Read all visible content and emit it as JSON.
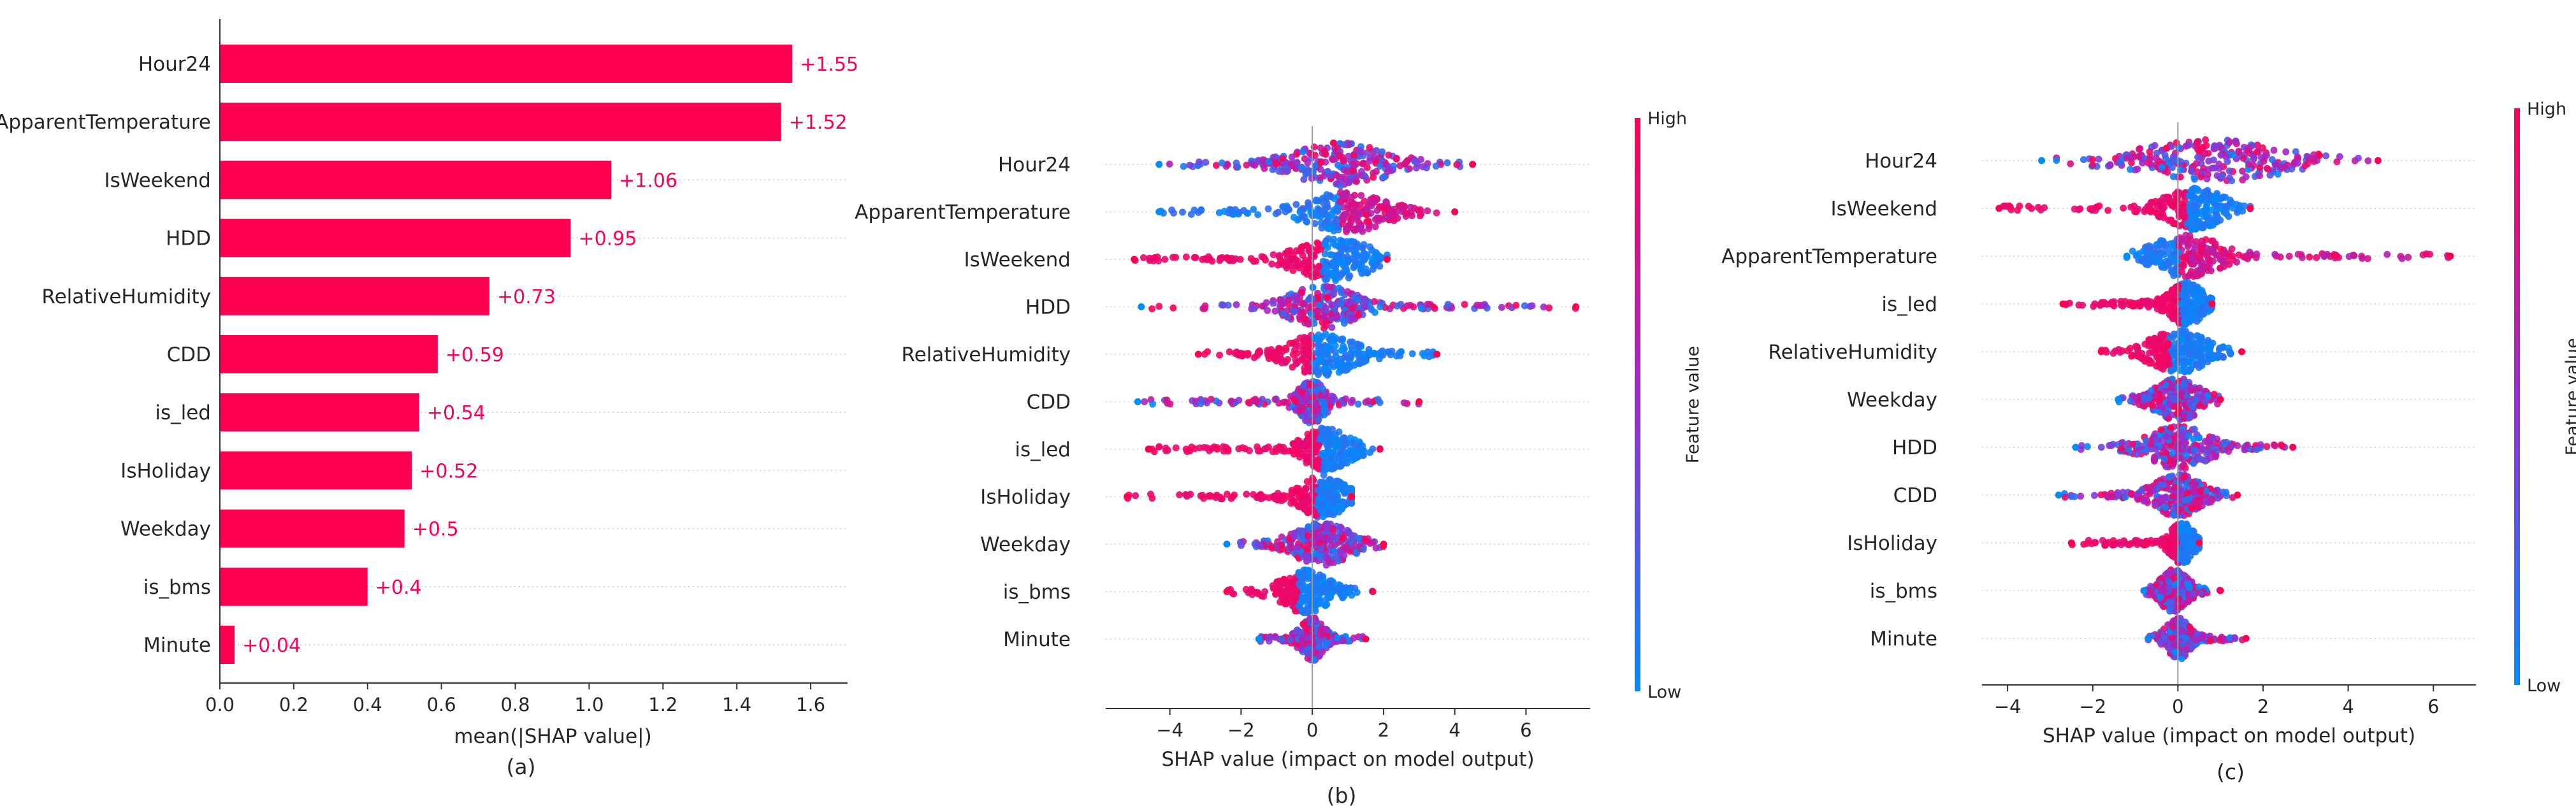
{
  "chart_data": [
    {
      "type": "bar",
      "panel_label": "(a)",
      "categories": [
        "Hour24",
        "ApparentTemperature",
        "IsWeekend",
        "HDD",
        "RelativeHumidity",
        "CDD",
        "is_led",
        "IsHoliday",
        "Weekday",
        "is_bms",
        "Minute"
      ],
      "values": [
        1.55,
        1.52,
        1.06,
        0.95,
        0.73,
        0.59,
        0.54,
        0.52,
        0.5,
        0.4,
        0.04
      ],
      "value_labels": [
        "+1.55",
        "+1.52",
        "+1.06",
        "+0.95",
        "+0.73",
        "+0.59",
        "+0.54",
        "+0.52",
        "+0.5",
        "+0.4",
        "+0.04"
      ],
      "xlabel": "mean(|SHAP value|)",
      "xlim": [
        0,
        1.7
      ],
      "xticks": [
        0.0,
        0.2,
        0.4,
        0.6,
        0.8,
        1.0,
        1.2,
        1.4,
        1.6
      ],
      "xtick_labels": [
        "0.0",
        "0.2",
        "0.4",
        "0.6",
        "0.8",
        "1.0",
        "1.2",
        "1.4",
        "1.6"
      ],
      "bar_color": "#ff0051",
      "grid": false
    },
    {
      "type": "scatter",
      "subtype": "beeswarm",
      "panel_label": "(b)",
      "features": [
        {
          "name": "Hour24",
          "min": -4.3,
          "max": 4.5,
          "center": 0.8,
          "spread": 1.0,
          "high_side": "mixed"
        },
        {
          "name": "ApparentTemperature",
          "min": -4.3,
          "max": 4.0,
          "center": 1.0,
          "spread": 0.8,
          "high_side": "positive"
        },
        {
          "name": "IsWeekend",
          "min": -5.0,
          "max": 2.1,
          "center": 0.6,
          "spread": 0.8,
          "high_side": "negative"
        },
        {
          "name": "HDD",
          "min": -4.8,
          "max": 7.4,
          "center": 0.3,
          "spread": 0.7,
          "high_side": "mixed"
        },
        {
          "name": "RelativeHumidity",
          "min": -3.2,
          "max": 3.5,
          "center": 0.3,
          "spread": 0.7,
          "high_side": "negative"
        },
        {
          "name": "CDD",
          "min": -4.9,
          "max": 3.0,
          "center": 0.0,
          "spread": 0.3,
          "high_side": "mixed"
        },
        {
          "name": "is_led",
          "min": -4.6,
          "max": 1.9,
          "center": 0.4,
          "spread": 0.5,
          "high_side": "negative"
        },
        {
          "name": "IsHoliday",
          "min": -5.2,
          "max": 1.1,
          "center": 0.3,
          "spread": 0.45,
          "high_side": "negative"
        },
        {
          "name": "Weekday",
          "min": -2.4,
          "max": 2.0,
          "center": 0.3,
          "spread": 0.6,
          "high_side": "mixed"
        },
        {
          "name": "is_bms",
          "min": -2.4,
          "max": 1.7,
          "center": -0.2,
          "spread": 0.5,
          "high_side": "negative"
        },
        {
          "name": "Minute",
          "min": -1.5,
          "max": 1.5,
          "center": 0.0,
          "spread": 0.25,
          "high_side": "mixed"
        }
      ],
      "xlabel": "SHAP value (impact on model output)",
      "xlim": [
        -5.8,
        7.8
      ],
      "xticks": [
        -4,
        -2,
        0,
        2,
        4,
        6
      ],
      "xtick_labels": [
        "−4",
        "−2",
        "0",
        "2",
        "4",
        "6"
      ],
      "colorbar": {
        "label": "Feature value",
        "high": "High",
        "low": "Low",
        "high_color": "#ff0051",
        "low_color": "#008bfb"
      }
    },
    {
      "type": "scatter",
      "subtype": "beeswarm",
      "panel_label": "(c)",
      "features": [
        {
          "name": "Hour24",
          "min": -3.2,
          "max": 4.7,
          "center": 0.8,
          "spread": 1.3,
          "high_side": "mixed"
        },
        {
          "name": "IsWeekend",
          "min": -4.2,
          "max": 1.7,
          "center": 0.4,
          "spread": 0.5,
          "high_side": "negative"
        },
        {
          "name": "ApparentTemperature",
          "min": -1.2,
          "max": 6.4,
          "center": 0.2,
          "spread": 0.6,
          "high_side": "positive"
        },
        {
          "name": "is_led",
          "min": -2.7,
          "max": 0.8,
          "center": 0.2,
          "spread": 0.3,
          "high_side": "negative"
        },
        {
          "name": "RelativeHumidity",
          "min": -1.8,
          "max": 1.5,
          "center": 0.0,
          "spread": 0.5,
          "high_side": "negative"
        },
        {
          "name": "Weekday",
          "min": -1.4,
          "max": 1.0,
          "center": 0.0,
          "spread": 0.4,
          "high_side": "mixed"
        },
        {
          "name": "HDD",
          "min": -2.4,
          "max": 2.7,
          "center": 0.0,
          "spread": 0.55,
          "high_side": "mixed"
        },
        {
          "name": "CDD",
          "min": -2.8,
          "max": 1.4,
          "center": 0.0,
          "spread": 0.4,
          "high_side": "mixed"
        },
        {
          "name": "IsHoliday",
          "min": -2.5,
          "max": 0.5,
          "center": 0.1,
          "spread": 0.2,
          "high_side": "negative"
        },
        {
          "name": "is_bms",
          "min": -0.8,
          "max": 1.0,
          "center": -0.1,
          "spread": 0.25,
          "high_side": "mixed"
        },
        {
          "name": "Minute",
          "min": -0.7,
          "max": 1.6,
          "center": 0.0,
          "spread": 0.2,
          "high_side": "mixed"
        }
      ],
      "xlabel": "SHAP value (impact on model output)",
      "xlim": [
        -4.6,
        7.0
      ],
      "xticks": [
        -4,
        -2,
        0,
        2,
        4,
        6
      ],
      "xtick_labels": [
        "−4",
        "−2",
        "0",
        "2",
        "4",
        "6"
      ],
      "colorbar": {
        "label": "Feature value",
        "high": "High",
        "low": "Low",
        "high_color": "#ff0051",
        "low_color": "#008bfb"
      }
    }
  ]
}
